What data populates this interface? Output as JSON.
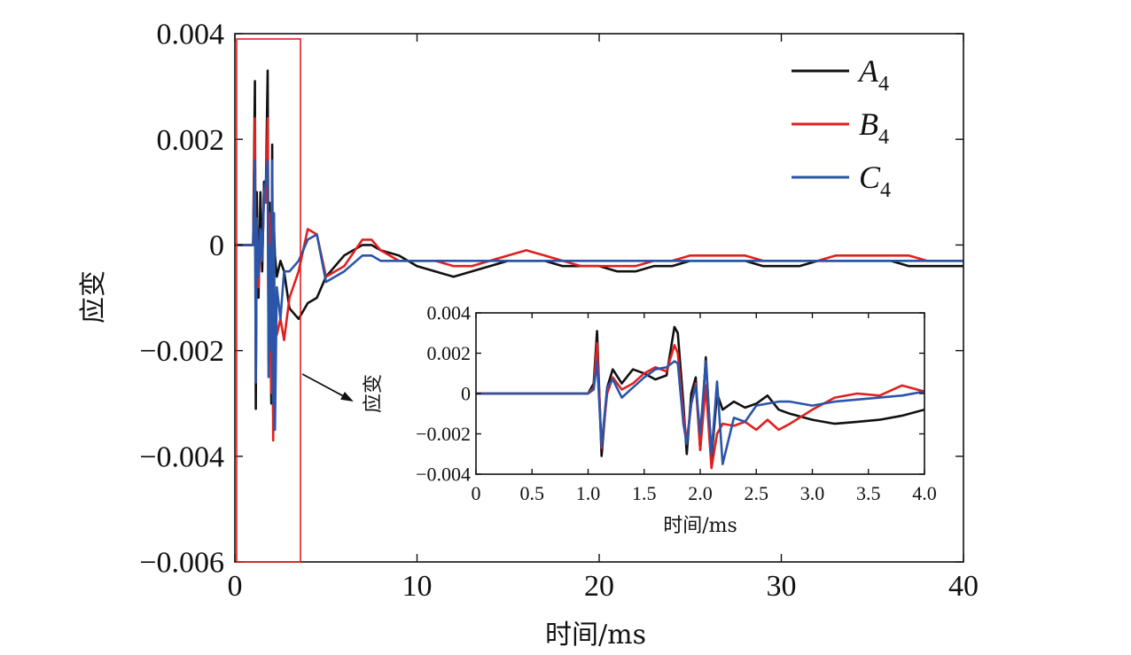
{
  "chart_data": [
    {
      "id": "main",
      "type": "line",
      "xlabel": "时间/ms",
      "ylabel": "应变",
      "xlim": [
        0,
        40
      ],
      "ylim": [
        -0.006,
        0.004
      ],
      "x_ticks": [
        0,
        10,
        20,
        30,
        40
      ],
      "x_tick_labels": [
        "0",
        "10",
        "20",
        "30",
        "40"
      ],
      "y_ticks": [
        0.004,
        0.002,
        0,
        -0.002,
        -0.004,
        -0.006
      ],
      "y_tick_labels": [
        "0.004",
        "0.002",
        "0",
        "−0.002",
        "−0.004",
        "−0.006"
      ],
      "grid": false,
      "legend_position": "top-right",
      "highlight_box": {
        "x_range": [
          0.1,
          3.6
        ],
        "y_range": [
          -0.006,
          0.0039
        ],
        "color": "#e02020"
      },
      "series": [
        {
          "name": "A",
          "name_sub": "4",
          "color": "#111111",
          "x": [
            0,
            1.0,
            1.1,
            1.15,
            1.2,
            1.3,
            1.4,
            1.5,
            1.6,
            1.7,
            1.8,
            1.85,
            1.9,
            2.0,
            2.05,
            2.1,
            2.15,
            2.2,
            2.3,
            2.5,
            2.7,
            3.0,
            3.5,
            4.0,
            4.5,
            5,
            6,
            7,
            7.5,
            8,
            9,
            10,
            11,
            12,
            13,
            14,
            15,
            16,
            17,
            18,
            19,
            20,
            21,
            22,
            23,
            24,
            25,
            26,
            27,
            28,
            29,
            30,
            31,
            32,
            33,
            34,
            35,
            36,
            37,
            38,
            39,
            40
          ],
          "y": [
            0,
            0,
            0.0031,
            -0.0031,
            0.001,
            -0.001,
            0.001,
            -0.0005,
            0.0012,
            0.001,
            0.0033,
            -0.002,
            0.0008,
            -0.003,
            0.0019,
            -0.0032,
            0.0003,
            -0.0002,
            -0.0006,
            -0.0003,
            -0.0005,
            -0.0012,
            -0.0014,
            -0.0011,
            -0.001,
            -0.0006,
            -0.0002,
            0.0,
            0.0,
            -0.0001,
            -0.0002,
            -0.0004,
            -0.0005,
            -0.0006,
            -0.0005,
            -0.0004,
            -0.0003,
            -0.0003,
            -0.0003,
            -0.0004,
            -0.0004,
            -0.0004,
            -0.0005,
            -0.0005,
            -0.0004,
            -0.0004,
            -0.0003,
            -0.0003,
            -0.0003,
            -0.0003,
            -0.0004,
            -0.0004,
            -0.0004,
            -0.0003,
            -0.0003,
            -0.0003,
            -0.0003,
            -0.0003,
            -0.0004,
            -0.0004,
            -0.0004,
            -0.0004
          ]
        },
        {
          "name": "B",
          "name_sub": "4",
          "color": "#e02020",
          "x": [
            0,
            1.0,
            1.1,
            1.15,
            1.2,
            1.3,
            1.4,
            1.5,
            1.6,
            1.7,
            1.8,
            1.85,
            1.9,
            2.0,
            2.05,
            2.1,
            2.15,
            2.2,
            2.3,
            2.5,
            2.7,
            3.0,
            3.5,
            4.0,
            4.5,
            5,
            6,
            7,
            7.5,
            8,
            9,
            10,
            11,
            12,
            13,
            14,
            15,
            16,
            17,
            18,
            19,
            20,
            21,
            22,
            23,
            24,
            25,
            26,
            27,
            28,
            29,
            30,
            31,
            32,
            33,
            34,
            35,
            36,
            37,
            38,
            39,
            40
          ],
          "y": [
            0,
            0,
            0.0024,
            -0.0026,
            0.0005,
            -0.0008,
            0.0002,
            -0.0003,
            0.001,
            0.0008,
            0.0024,
            -0.0022,
            0.0006,
            -0.0028,
            0.001,
            -0.0037,
            -0.0015,
            -0.0015,
            -0.0017,
            -0.0014,
            -0.0018,
            -0.001,
            -0.0005,
            0.0003,
            0.0002,
            -0.0006,
            -0.0004,
            0.0001,
            0.0001,
            -0.0001,
            -0.0003,
            -0.0003,
            -0.0003,
            -0.0004,
            -0.0004,
            -0.0003,
            -0.0002,
            -0.0001,
            -0.0002,
            -0.0003,
            -0.0004,
            -0.0004,
            -0.0004,
            -0.0004,
            -0.0003,
            -0.0003,
            -0.0002,
            -0.0002,
            -0.0002,
            -0.0002,
            -0.0003,
            -0.0003,
            -0.0003,
            -0.0003,
            -0.0002,
            -0.0002,
            -0.0002,
            -0.0002,
            -0.0002,
            -0.0003,
            -0.0003,
            -0.0003
          ]
        },
        {
          "name": "C",
          "name_sub": "4",
          "color": "#2a55a8",
          "x": [
            0,
            1.0,
            1.1,
            1.15,
            1.2,
            1.3,
            1.4,
            1.5,
            1.6,
            1.7,
            1.8,
            1.85,
            1.9,
            2.0,
            2.05,
            2.1,
            2.15,
            2.2,
            2.3,
            2.5,
            2.7,
            3.0,
            3.5,
            4.0,
            4.5,
            5,
            6,
            7,
            7.5,
            8,
            9,
            10,
            11,
            12,
            13,
            14,
            15,
            16,
            17,
            18,
            19,
            20,
            21,
            22,
            23,
            24,
            25,
            26,
            27,
            28,
            29,
            30,
            31,
            32,
            33,
            34,
            35,
            36,
            37,
            38,
            39,
            40
          ],
          "y": [
            0,
            0,
            0.0016,
            -0.0026,
            0.0005,
            -0.0006,
            0.0003,
            -0.0003,
            0.001,
            0.0012,
            0.0016,
            -0.0025,
            0.0,
            -0.002,
            0.0016,
            -0.003,
            0.0006,
            -0.0035,
            -0.0008,
            -0.0014,
            -0.0005,
            -0.0005,
            -0.0003,
            0.0001,
            0.0002,
            -0.0007,
            -0.0005,
            -0.0002,
            -0.0002,
            -0.0003,
            -0.0003,
            -0.0003,
            -0.0003,
            -0.0003,
            -0.0003,
            -0.0003,
            -0.0003,
            -0.0003,
            -0.0003,
            -0.0003,
            -0.0003,
            -0.0003,
            -0.0003,
            -0.0003,
            -0.0003,
            -0.0003,
            -0.0003,
            -0.0003,
            -0.0003,
            -0.0003,
            -0.0003,
            -0.0003,
            -0.0003,
            -0.0003,
            -0.0003,
            -0.0003,
            -0.0003,
            -0.0003,
            -0.0003,
            -0.0003,
            -0.0003,
            -0.0003
          ]
        }
      ]
    },
    {
      "id": "inset",
      "type": "line",
      "xlabel": "时间/ms",
      "ylabel": "应变",
      "xlim": [
        0,
        4.0
      ],
      "ylim": [
        -0.004,
        0.004
      ],
      "x_ticks": [
        0,
        0.5,
        1.0,
        1.5,
        2.0,
        2.5,
        3.0,
        3.5,
        4.0
      ],
      "x_tick_labels": [
        "0",
        "0.5",
        "1.0",
        "1.5",
        "2.0",
        "2.5",
        "3.0",
        "3.5",
        "4.0"
      ],
      "y_ticks": [
        0.004,
        0.002,
        0,
        -0.002,
        -0.004
      ],
      "y_tick_labels": [
        "0.004",
        "0.002",
        "0",
        "−0.002",
        "−0.004"
      ],
      "grid": false,
      "series": [
        {
          "name": "A",
          "color": "#111111",
          "x": [
            0,
            1.0,
            1.05,
            1.08,
            1.12,
            1.17,
            1.22,
            1.3,
            1.4,
            1.5,
            1.6,
            1.7,
            1.77,
            1.8,
            1.85,
            1.88,
            1.92,
            1.96,
            2.0,
            2.05,
            2.1,
            2.15,
            2.2,
            2.3,
            2.4,
            2.5,
            2.6,
            2.7,
            2.8,
            3.0,
            3.2,
            3.4,
            3.6,
            3.8,
            4.0
          ],
          "y": [
            0,
            0,
            0.0005,
            0.0031,
            -0.0031,
            0.0003,
            0.0012,
            0.0005,
            0.0012,
            0.001,
            0.0007,
            0.0009,
            0.0033,
            0.003,
            -0.0005,
            -0.003,
            0.0,
            0.0008,
            -0.0028,
            0.0018,
            -0.0032,
            0.0,
            -0.0008,
            -0.0004,
            -0.0007,
            -0.0005,
            -0.0001,
            -0.0008,
            -0.001,
            -0.0013,
            -0.0015,
            -0.0014,
            -0.0013,
            -0.0011,
            -0.0008
          ]
        },
        {
          "name": "B",
          "color": "#e02020",
          "x": [
            0,
            1.0,
            1.05,
            1.08,
            1.12,
            1.17,
            1.22,
            1.3,
            1.4,
            1.5,
            1.6,
            1.7,
            1.77,
            1.8,
            1.85,
            1.88,
            1.92,
            1.96,
            2.0,
            2.05,
            2.1,
            2.15,
            2.2,
            2.3,
            2.4,
            2.5,
            2.6,
            2.7,
            2.8,
            3.0,
            3.2,
            3.4,
            3.6,
            3.8,
            4.0
          ],
          "y": [
            0,
            0,
            0.0003,
            0.0025,
            -0.0027,
            0.0,
            0.0008,
            0.0002,
            0.0005,
            0.001,
            0.0013,
            0.0011,
            0.0024,
            0.002,
            -0.001,
            -0.0024,
            -0.0005,
            0.0005,
            -0.0028,
            0.0004,
            -0.0037,
            -0.002,
            -0.0015,
            -0.0016,
            -0.0014,
            -0.0018,
            -0.0013,
            -0.0018,
            -0.0015,
            -0.0008,
            -0.0002,
            0.0,
            -0.0001,
            0.0004,
            0.0001
          ]
        },
        {
          "name": "C",
          "color": "#2a55a8",
          "x": [
            0,
            1.0,
            1.05,
            1.08,
            1.12,
            1.17,
            1.22,
            1.3,
            1.4,
            1.5,
            1.6,
            1.7,
            1.77,
            1.8,
            1.85,
            1.88,
            1.92,
            1.96,
            2.0,
            2.05,
            2.1,
            2.15,
            2.2,
            2.3,
            2.4,
            2.5,
            2.6,
            2.7,
            2.8,
            3.0,
            3.2,
            3.4,
            3.6,
            3.8,
            4.0
          ],
          "y": [
            0,
            0,
            0.0002,
            0.0016,
            -0.0026,
            0.0003,
            0.0007,
            -0.0002,
            0.0003,
            0.0008,
            0.0012,
            0.0013,
            0.0016,
            0.0015,
            -0.0015,
            -0.0025,
            -0.0005,
            0.0004,
            -0.002,
            0.0016,
            -0.003,
            0.0006,
            -0.0035,
            -0.0012,
            -0.0014,
            -0.0006,
            -0.0005,
            -0.0004,
            -0.0004,
            -0.0006,
            -0.0004,
            -0.0003,
            -0.0002,
            -0.0001,
            0.0001
          ]
        }
      ]
    }
  ]
}
